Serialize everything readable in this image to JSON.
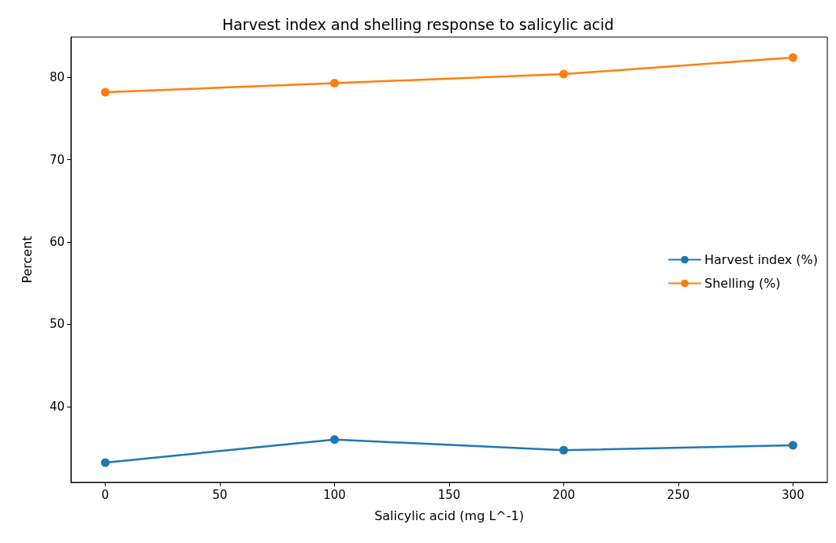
{
  "chart_data": {
    "type": "line",
    "title": "Harvest index and shelling response to salicylic acid",
    "xlabel": "Salicylic acid (mg L^-1)",
    "ylabel": "Percent",
    "x": [
      0,
      100,
      200,
      300
    ],
    "series": [
      {
        "name": "Harvest index (%)",
        "color": "#1f77b4",
        "values": [
          33.2,
          36.0,
          34.7,
          35.3
        ]
      },
      {
        "name": "Shelling (%)",
        "color": "#ff7f0e",
        "values": [
          78.2,
          79.3,
          80.4,
          82.4
        ]
      }
    ],
    "xlim": [
      -15,
      315
    ],
    "xticks": [
      0,
      50,
      100,
      150,
      200,
      250,
      300
    ],
    "ylim": [
      30.8,
      84.9
    ],
    "yticks": [
      40,
      50,
      60,
      70,
      80
    ],
    "grid": false,
    "legend": "right",
    "marker": "circle",
    "line_style": "solid"
  }
}
